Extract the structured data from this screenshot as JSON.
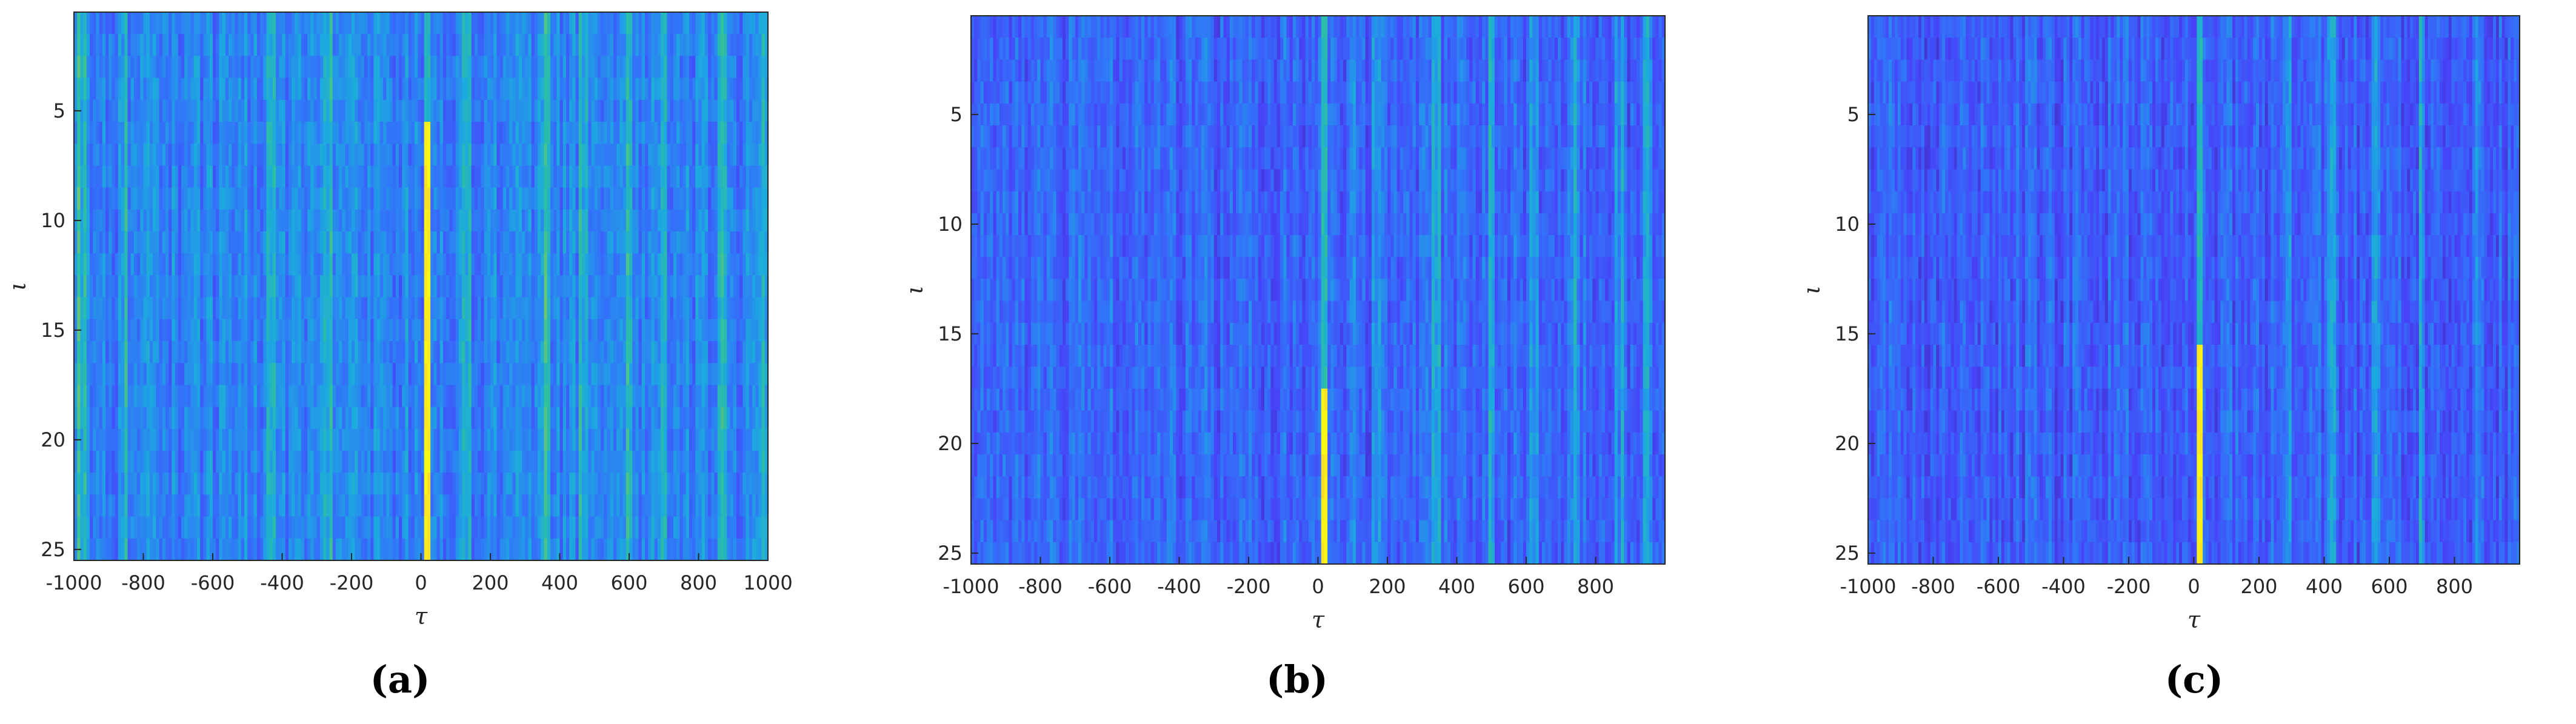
{
  "colormap": [
    "#3e26a8",
    "#4743f8",
    "#3176f8",
    "#1caadf",
    "#2ec09f",
    "#96cb53",
    "#fcbb3d",
    "#f9fb15"
  ],
  "chart_data": [
    {
      "type": "heatmap",
      "caption": "(a)",
      "xlabel": "τ",
      "ylabel": "ι",
      "xlim": [
        -1000,
        1000
      ],
      "ylim": [
        1,
        25
      ],
      "x_ticks": [
        "-1000",
        "-800",
        "-600",
        "-400",
        "-200",
        "0",
        "200",
        "400",
        "600",
        "800",
        "1000"
      ],
      "y_ticks": [
        "5",
        "10",
        "15",
        "20",
        "25"
      ],
      "peak_tau": 20,
      "peak_rows": [
        6,
        25
      ],
      "background_level": 0.32,
      "secondary_tau": [
        -980,
        -860,
        -430,
        -270,
        130,
        360,
        470,
        600,
        700,
        870,
        990
      ]
    },
    {
      "type": "heatmap",
      "caption": "(b)",
      "xlabel": "τ",
      "ylabel": "ι",
      "xlim": [
        -1000,
        1000
      ],
      "ylim": [
        1,
        25
      ],
      "x_ticks": [
        "-1000",
        "-800",
        "-600",
        "-400",
        "-200",
        "0",
        "200",
        "400",
        "600",
        "800"
      ],
      "y_ticks": [
        "5",
        "10",
        "15",
        "20",
        "25"
      ],
      "peak_tau": 20,
      "peak_rows": [
        18,
        25
      ],
      "background_level": 0.24,
      "secondary_tau": [
        100,
        170,
        340,
        500,
        620,
        740,
        870,
        950
      ]
    },
    {
      "type": "heatmap",
      "caption": "(c)",
      "xlabel": "τ",
      "ylabel": "ι",
      "xlim": [
        -1000,
        1000
      ],
      "ylim": [
        1,
        25
      ],
      "x_ticks": [
        "-1000",
        "-800",
        "-600",
        "-400",
        "-200",
        "0",
        "200",
        "400",
        "600",
        "800"
      ],
      "y_ticks": [
        "5",
        "10",
        "15",
        "20",
        "25"
      ],
      "peak_tau": 20,
      "peak_rows": [
        16,
        25
      ],
      "background_level": 0.22,
      "secondary_tau": [
        290,
        420,
        560,
        700,
        870
      ]
    }
  ]
}
